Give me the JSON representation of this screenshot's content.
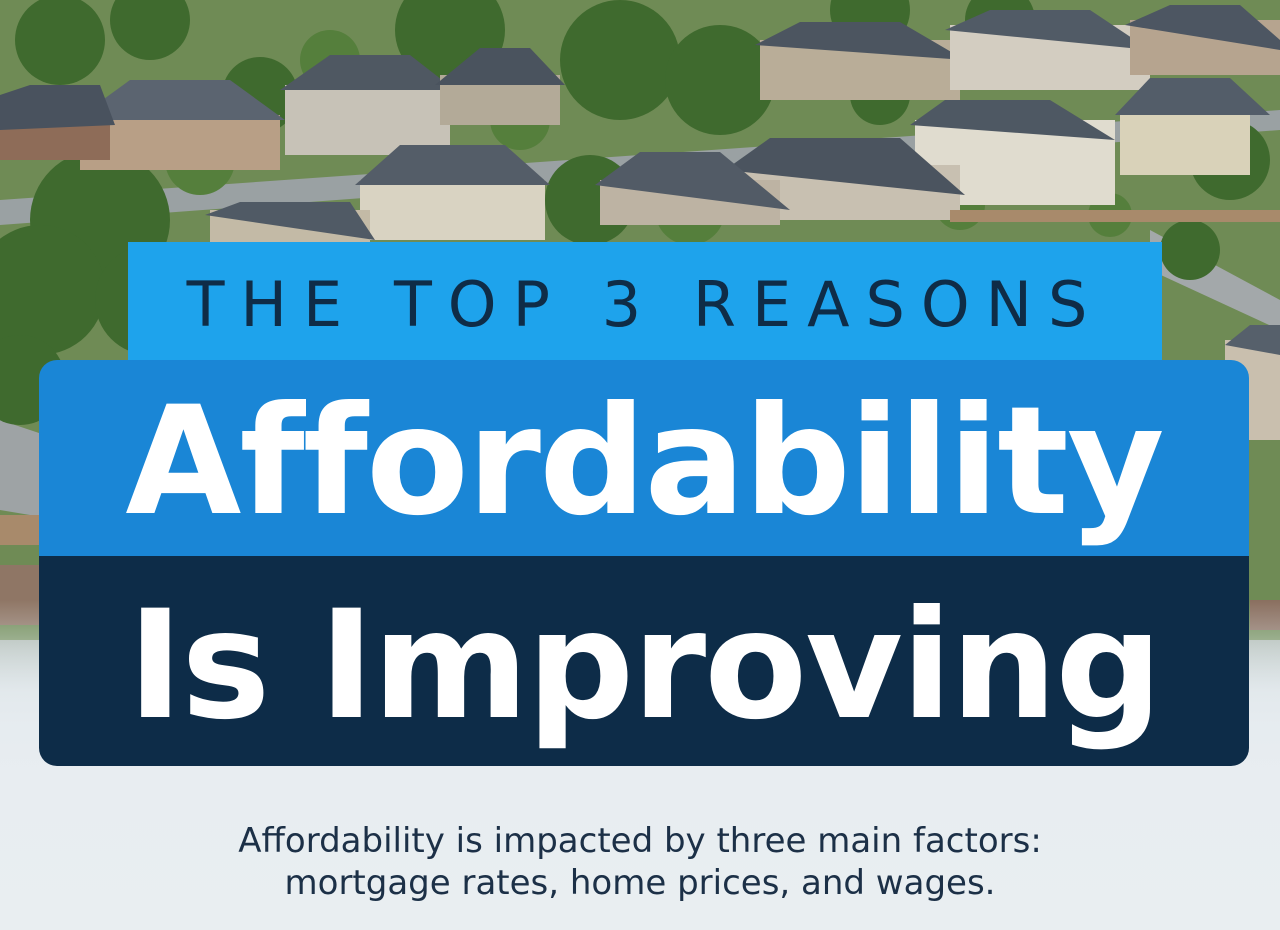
{
  "banner": {
    "kicker": "THE TOP 3 REASONS",
    "headline_line1": "Affordability",
    "headline_line2": "Is Improving"
  },
  "intro": {
    "line1": "Affordability is impacted by three main factors:",
    "line2": "mortgage rates, home prices, and wages."
  },
  "colors": {
    "kicker_bg": "#1ea3ec",
    "headline_bg_top": "#1a86d6",
    "headline_bg_bottom": "#0d2c48",
    "headline_text": "#ffffff",
    "kicker_text": "#0f2c47",
    "intro_text": "#1c3047"
  },
  "background_image": "aerial-suburban-neighborhood-photo"
}
